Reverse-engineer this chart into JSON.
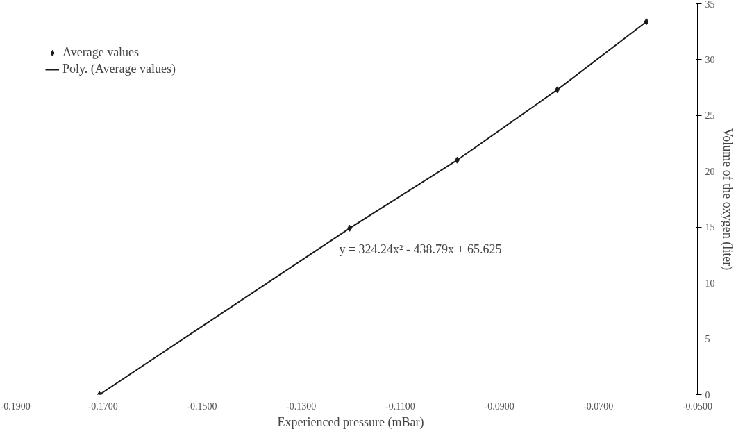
{
  "chart_data": {
    "type": "scatter",
    "xlabel": "Experienced pressure (mBar)",
    "ylabel": "Volume of the oxygen (liter)",
    "xlim": [
      -0.19,
      -0.05
    ],
    "xticks": [
      {
        "value": -0.19,
        "label": "-0.1900"
      },
      {
        "value": -0.17,
        "label": "-0.1700"
      },
      {
        "value": -0.15,
        "label": "-0.1500"
      },
      {
        "value": -0.13,
        "label": "-0.1300"
      },
      {
        "value": -0.11,
        "label": "-0.1100"
      },
      {
        "value": -0.09,
        "label": "-0.0900"
      },
      {
        "value": -0.07,
        "label": "-0.0700"
      },
      {
        "value": -0.05,
        "label": "-0.0500"
      }
    ],
    "ylim": [
      0,
      35
    ],
    "yticks": [
      0,
      5,
      10,
      15,
      20,
      25,
      30,
      35
    ],
    "series": [
      {
        "name": "Average values",
        "color": "#1a1a1a",
        "marker": "diamond",
        "x": [
          -0.1707,
          -0.1202,
          -0.0985,
          -0.0783,
          -0.0603
        ],
        "values": [
          0,
          14.9,
          21.0,
          27.3,
          33.4
        ]
      },
      {
        "name": "Poly. (Average values)",
        "type": "line",
        "color": "#1a1a1a",
        "line_style": "solid",
        "x": [
          -0.1707,
          -0.1202,
          -0.0985,
          -0.0783,
          -0.0603
        ],
        "values": [
          0,
          14.9,
          21.0,
          27.3,
          33.4
        ]
      }
    ],
    "annotations": [
      "y = 324.24x² - 438.79x + 65.625"
    ],
    "grid": false,
    "legend": "top left"
  }
}
